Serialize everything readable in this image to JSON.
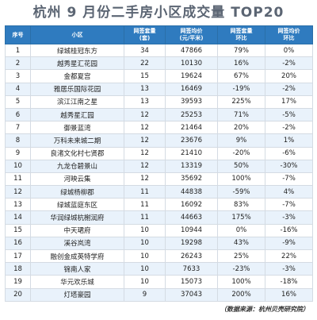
{
  "title": "杭州 9 月份二手房小区成交量 TOP20",
  "headers": {
    "rank": "序号",
    "community": "小区",
    "volume": [
      "网签套量",
      "(套)"
    ],
    "price": [
      "网签均价",
      "(元/平米)"
    ],
    "vol_change": [
      "网签套量",
      "环比"
    ],
    "price_change": [
      "网签均价",
      "环比"
    ]
  },
  "rows": [
    {
      "rank": "1",
      "name": "绿城桂冠东方",
      "volume": "34",
      "price": "47866",
      "vol_change": "79%",
      "price_change": "0%"
    },
    {
      "rank": "2",
      "name": "越秀星汇花园",
      "volume": "22",
      "price": "10130",
      "vol_change": "16%",
      "price_change": "-2%"
    },
    {
      "rank": "3",
      "name": "金都夏宫",
      "volume": "15",
      "price": "19624",
      "vol_change": "67%",
      "price_change": "20%"
    },
    {
      "rank": "4",
      "name": "雅居乐国际花园",
      "volume": "13",
      "price": "16469",
      "vol_change": "-19%",
      "price_change": "-2%"
    },
    {
      "rank": "5",
      "name": "滨江江南之星",
      "volume": "13",
      "price": "39593",
      "vol_change": "225%",
      "price_change": "17%"
    },
    {
      "rank": "6",
      "name": "越秀星汇园",
      "volume": "12",
      "price": "25253",
      "vol_change": "71%",
      "price_change": "-5%"
    },
    {
      "rank": "7",
      "name": "御景蓝湾",
      "volume": "12",
      "price": "21464",
      "vol_change": "20%",
      "price_change": "-2%"
    },
    {
      "rank": "8",
      "name": "万科未来城二期",
      "volume": "12",
      "price": "23676",
      "vol_change": "9%",
      "price_change": "1%"
    },
    {
      "rank": "9",
      "name": "良渚文化村七贤郡",
      "volume": "12",
      "price": "21410",
      "vol_change": "-20%",
      "price_change": "-6%"
    },
    {
      "rank": "10",
      "name": "九龙仓碧景山",
      "volume": "12",
      "price": "13319",
      "vol_change": "50%",
      "price_change": "-30%"
    },
    {
      "rank": "11",
      "name": "河映云集",
      "volume": "12",
      "price": "35692",
      "vol_change": "100%",
      "price_change": "-7%"
    },
    {
      "rank": "12",
      "name": "绿城杨柳郡",
      "volume": "11",
      "price": "44838",
      "vol_change": "-59%",
      "price_change": "4%"
    },
    {
      "rank": "13",
      "name": "绿城蓝庭东区",
      "volume": "11",
      "price": "16092",
      "vol_change": "83%",
      "price_change": "-7%"
    },
    {
      "rank": "14",
      "name": "华润绿城杭榭润府",
      "volume": "11",
      "price": "44663",
      "vol_change": "175%",
      "price_change": "-3%"
    },
    {
      "rank": "15",
      "name": "中天珺府",
      "volume": "10",
      "price": "10944",
      "vol_change": "0%",
      "price_change": "-16%"
    },
    {
      "rank": "16",
      "name": "溪谷岚湾",
      "volume": "10",
      "price": "19298",
      "vol_change": "43%",
      "price_change": "-9%"
    },
    {
      "rank": "17",
      "name": "融创金成英特学府",
      "volume": "10",
      "price": "26243",
      "vol_change": "25%",
      "price_change": "22%"
    },
    {
      "rank": "18",
      "name": "锦南人家",
      "volume": "10",
      "price": "7633",
      "vol_change": "-23%",
      "price_change": "-3%"
    },
    {
      "rank": "19",
      "name": "华元欢乐城",
      "volume": "10",
      "price": "15073",
      "vol_change": "100%",
      "price_change": "-18%"
    },
    {
      "rank": "20",
      "name": "灯塔豪园",
      "volume": "9",
      "price": "37043",
      "vol_change": "200%",
      "price_change": "16%"
    }
  ],
  "source": "（数据来源：杭州贝壳研究院）"
}
